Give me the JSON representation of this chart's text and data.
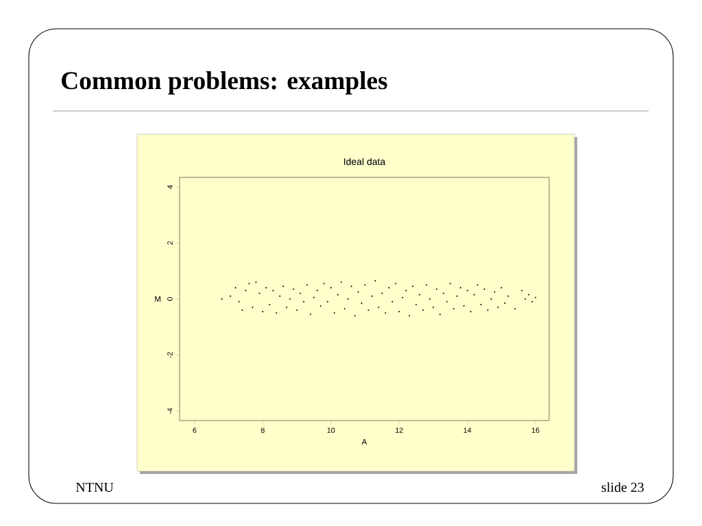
{
  "chart_data": {
    "type": "scatter",
    "title": "Common problems: examples",
    "subtitle": "Ideal data",
    "xlabel": "A",
    "ylabel": "M",
    "annotations": [
      "NTNU",
      "slide 23"
    ],
    "xlim": [
      5.56,
      16.4
    ],
    "ylim": [
      -4.34,
      4.34
    ],
    "xticks": [
      6,
      8,
      10,
      12,
      14,
      16
    ],
    "yticks": [
      -4,
      -2,
      0,
      2,
      4
    ],
    "color": "#000000",
    "x": [
      6.8,
      7.05,
      7.2,
      7.3,
      7.4,
      7.5,
      7.6,
      7.7,
      7.8,
      7.9,
      8.0,
      8.1,
      8.2,
      8.3,
      8.4,
      8.5,
      8.6,
      8.7,
      8.8,
      8.9,
      9.0,
      9.1,
      9.2,
      9.3,
      9.4,
      9.5,
      9.6,
      9.7,
      9.8,
      9.9,
      10.0,
      10.1,
      10.2,
      10.3,
      10.4,
      10.5,
      10.6,
      10.7,
      10.8,
      10.9,
      11.0,
      11.1,
      11.2,
      11.3,
      11.4,
      11.5,
      11.6,
      11.7,
      11.8,
      11.9,
      12.0,
      12.1,
      12.2,
      12.3,
      12.4,
      12.5,
      12.6,
      12.7,
      12.8,
      12.9,
      13.0,
      13.1,
      13.2,
      13.3,
      13.4,
      13.5,
      13.6,
      13.7,
      13.8,
      13.9,
      14.0,
      14.1,
      14.2,
      14.3,
      14.4,
      14.5,
      14.6,
      14.7,
      14.8,
      14.9,
      15.0,
      15.1,
      15.2,
      15.4,
      15.6,
      15.7,
      15.8,
      15.9,
      16.0
    ],
    "values": [
      0.0,
      0.1,
      0.4,
      -0.1,
      -0.4,
      0.3,
      0.55,
      -0.3,
      0.6,
      0.2,
      -0.45,
      0.4,
      -0.2,
      0.3,
      -0.5,
      0.1,
      0.45,
      -0.3,
      0.0,
      0.35,
      -0.4,
      0.2,
      -0.1,
      0.5,
      -0.55,
      0.05,
      0.3,
      -0.25,
      0.55,
      -0.1,
      0.4,
      -0.5,
      0.15,
      0.6,
      -0.35,
      0.0,
      0.45,
      -0.6,
      0.25,
      -0.15,
      0.5,
      -0.4,
      0.1,
      0.65,
      -0.3,
      0.2,
      -0.5,
      0.4,
      -0.1,
      0.55,
      -0.45,
      0.05,
      0.3,
      -0.6,
      0.45,
      -0.2,
      0.15,
      -0.4,
      0.5,
      0.0,
      -0.3,
      0.35,
      -0.55,
      0.2,
      -0.1,
      0.55,
      -0.35,
      0.1,
      0.4,
      -0.25,
      0.3,
      -0.45,
      0.15,
      0.5,
      -0.2,
      0.35,
      -0.4,
      0.0,
      0.25,
      -0.3,
      0.4,
      -0.15,
      0.1,
      -0.35,
      0.3,
      0.0,
      0.15,
      -0.1,
      0.05
    ]
  }
}
